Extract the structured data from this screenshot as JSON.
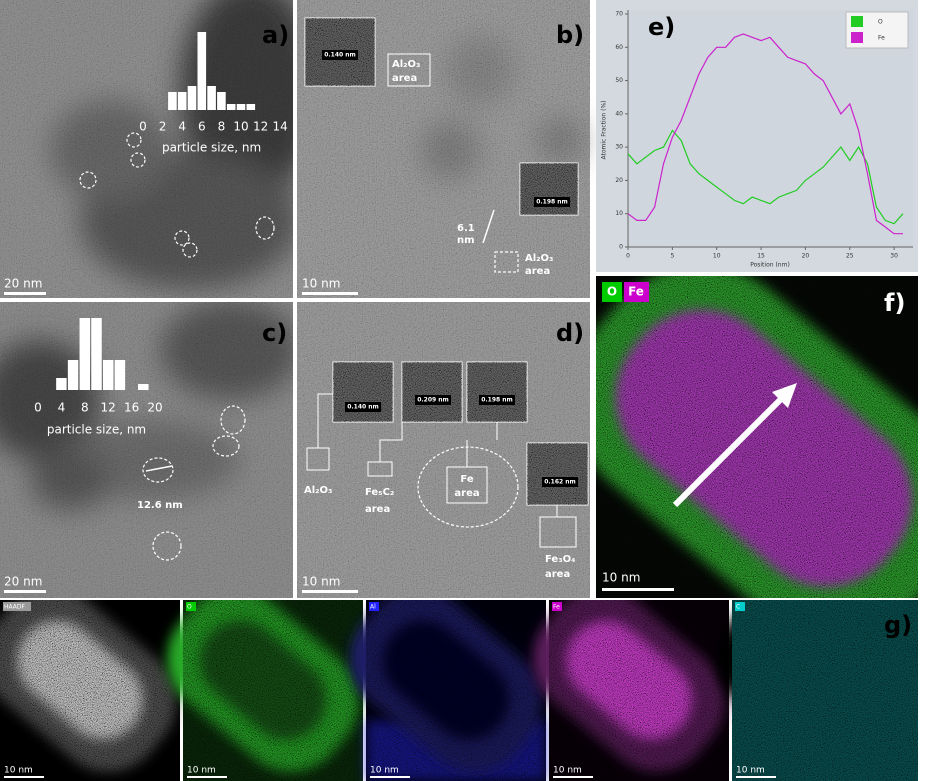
{
  "panels": {
    "a": {
      "label": "a)",
      "scale_bar": "20 nm"
    },
    "b": {
      "label": "b)",
      "inset_1": "0.140 nm",
      "inset_2": "0.198 nm",
      "area_top": [
        "Al₂O₃",
        "area"
      ],
      "thickness": [
        "6.1",
        "nm"
      ],
      "area_bottom": [
        "Al₂O₃",
        "area"
      ],
      "scale_bar": "10 nm"
    },
    "c": {
      "label": "c)",
      "diameter": "12.6 nm",
      "scale_bar": "20 nm"
    },
    "d": {
      "label": "d)",
      "insets": [
        "0.140 nm",
        "0.209 nm",
        "0.198 nm",
        "0.162 nm"
      ],
      "al2o3": "Al₂O₃",
      "fe5c2": [
        "Fe₅C₂",
        "area"
      ],
      "fe": [
        "Fe",
        "area"
      ],
      "fe3o4": [
        "Fe₃O₄",
        "area"
      ],
      "scale_bar": "10 nm"
    },
    "e": {
      "label": "e)"
    },
    "f": {
      "label": "f)",
      "legend": [
        "O",
        "Fe"
      ],
      "scale_bar": "10 nm"
    },
    "g": {
      "label": "g)",
      "tiles": [
        {
          "name": "HAADF",
          "scale_bar": "10 nm"
        },
        {
          "name": "O",
          "scale_bar": "10 nm"
        },
        {
          "name": "Al",
          "scale_bar": "10 nm"
        },
        {
          "name": "Fe",
          "scale_bar": "10 nm"
        },
        {
          "name": "C",
          "scale_bar": "10 nm"
        }
      ]
    }
  },
  "chart_data": [
    {
      "type": "histogram",
      "xlabel": "particle size, nm",
      "color": "#ffffff",
      "bins": [
        2.5,
        3.5,
        4.5,
        5.5,
        6.5,
        7.5,
        8.5,
        9.5,
        10.5,
        11.5
      ],
      "values": [
        3,
        3,
        4,
        13,
        4,
        3,
        1,
        1,
        1
      ],
      "xlim": [
        0,
        14
      ],
      "xticks": [
        0,
        2,
        4,
        6,
        8,
        10,
        12,
        14
      ]
    },
    {
      "type": "histogram",
      "xlabel": "particle size, nm",
      "color": "#ffffff",
      "bins": [
        3,
        5,
        7,
        9,
        11,
        13,
        15,
        17,
        19
      ],
      "values": [
        2,
        5,
        12,
        12,
        5,
        5,
        0,
        1
      ],
      "xlim": [
        0,
        20
      ],
      "xticks": [
        0,
        4,
        8,
        12,
        16,
        20
      ]
    },
    {
      "type": "line",
      "xlabel": "Position (nm)",
      "ylabel": "Atomic Fraction (%)",
      "x": [
        0,
        1,
        2,
        3,
        4,
        5,
        6,
        7,
        8,
        9,
        10,
        11,
        12,
        13,
        14,
        15,
        16,
        17,
        18,
        19,
        20,
        21,
        22,
        23,
        24,
        25,
        26,
        27,
        28,
        29,
        30,
        31
      ],
      "series": [
        {
          "name": "O",
          "color": "#22cc22",
          "values": [
            28,
            25,
            27,
            29,
            30,
            35,
            32,
            25,
            22,
            20,
            18,
            16,
            14,
            13,
            15,
            14,
            13,
            15,
            16,
            17,
            20,
            22,
            24,
            27,
            30,
            26,
            30,
            25,
            12,
            8,
            7,
            10
          ]
        },
        {
          "name": "Fe",
          "color": "#cc22cc",
          "values": [
            10,
            8,
            8,
            12,
            25,
            33,
            38,
            45,
            52,
            57,
            60,
            60,
            63,
            64,
            63,
            62,
            63,
            60,
            57,
            56,
            55,
            52,
            50,
            45,
            40,
            43,
            35,
            22,
            8,
            6,
            4,
            4
          ]
        }
      ],
      "xlim": [
        0,
        31
      ],
      "ylim": [
        0,
        70
      ],
      "xticks": [
        0,
        5,
        10,
        15,
        20,
        25,
        30
      ],
      "yticks": [
        0,
        10,
        20,
        30,
        40,
        50,
        60,
        70
      ],
      "legend": "upper right"
    }
  ]
}
